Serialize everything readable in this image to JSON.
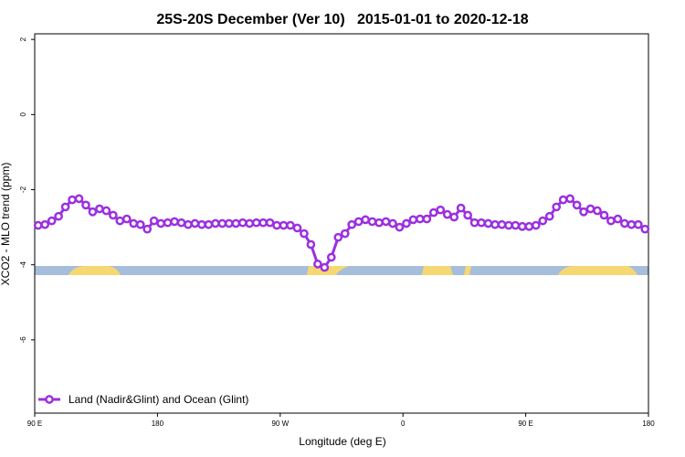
{
  "chart_data": {
    "type": "line",
    "title": "25S-20S December (Ver 10)   2015-01-01 to 2020-12-18",
    "x_label": "Longitude (deg E)",
    "y_label": "XCO2 - MLO trend (ppm)",
    "xlim": [
      90,
      540
    ],
    "xticks": [
      {
        "value": 90,
        "label": "90 E"
      },
      {
        "value": 180,
        "label": "180"
      },
      {
        "value": 270,
        "label": "90 W"
      },
      {
        "value": 360,
        "label": "0"
      },
      {
        "value": 450,
        "label": "90 E"
      },
      {
        "value": 540,
        "label": "180"
      }
    ],
    "ylim": [
      -7.95,
      2.15
    ],
    "yticks": [
      -6,
      -4,
      -2,
      0,
      2
    ],
    "legend_position": "bottom-left",
    "x": [
      92.5,
      97.5,
      102.5,
      107.5,
      112.5,
      117.5,
      122.5,
      127.5,
      132.5,
      137.5,
      142.5,
      147.5,
      152.5,
      157.5,
      162.5,
      167.5,
      172.5,
      177.5,
      182.5,
      187.5,
      192.5,
      197.5,
      202.5,
      207.5,
      212.5,
      217.5,
      222.5,
      227.5,
      232.5,
      237.5,
      242.5,
      247.5,
      252.5,
      257.5,
      262.5,
      267.5,
      272.5,
      277.5,
      282.5,
      287.5,
      292.5,
      297.5,
      302.5,
      307.5,
      312.5,
      317.5,
      322.5,
      327.5,
      332.5,
      337.5,
      342.5,
      347.5,
      352.5,
      357.5,
      362.5,
      367.5,
      372.5,
      377.5,
      382.5,
      387.5,
      392.5,
      397.5,
      402.5,
      407.5,
      412.5,
      417.5,
      422.5,
      427.5,
      432.5,
      437.5,
      442.5,
      447.5,
      452.5,
      457.5,
      462.5,
      467.5,
      472.5,
      477.5,
      482.5,
      487.5,
      492.5,
      497.5,
      502.5,
      507.5,
      512.5,
      517.5,
      522.5,
      527.5,
      532.5,
      537.5
    ],
    "series": [
      {
        "name": "Land (Nadir&Glint) and Ocean (Glint)",
        "color": "#9b30e0",
        "values": [
          -2.95,
          -2.93,
          -2.83,
          -2.71,
          -2.46,
          -2.27,
          -2.24,
          -2.41,
          -2.59,
          -2.51,
          -2.56,
          -2.68,
          -2.83,
          -2.78,
          -2.9,
          -2.93,
          -3.05,
          -2.83,
          -2.9,
          -2.88,
          -2.85,
          -2.88,
          -2.93,
          -2.9,
          -2.93,
          -2.93,
          -2.9,
          -2.9,
          -2.9,
          -2.9,
          -2.88,
          -2.9,
          -2.88,
          -2.88,
          -2.88,
          -2.95,
          -2.95,
          -2.95,
          -3.02,
          -3.17,
          -3.46,
          -3.98,
          -4.07,
          -3.8,
          -3.27,
          -3.17,
          -2.93,
          -2.85,
          -2.8,
          -2.85,
          -2.88,
          -2.85,
          -2.9,
          -3.0,
          -2.9,
          -2.8,
          -2.78,
          -2.78,
          -2.61,
          -2.54,
          -2.66,
          -2.73,
          -2.49,
          -2.68,
          -2.88,
          -2.88,
          -2.9,
          -2.93,
          -2.93,
          -2.95,
          -2.95,
          -2.98,
          -2.98,
          -2.95,
          -2.83,
          -2.71,
          -2.46,
          -2.27,
          -2.24,
          -2.41,
          -2.59,
          -2.51,
          -2.56,
          -2.68,
          -2.83,
          -2.78,
          -2.9,
          -2.93,
          -2.93,
          -3.05
        ]
      }
    ]
  }
}
